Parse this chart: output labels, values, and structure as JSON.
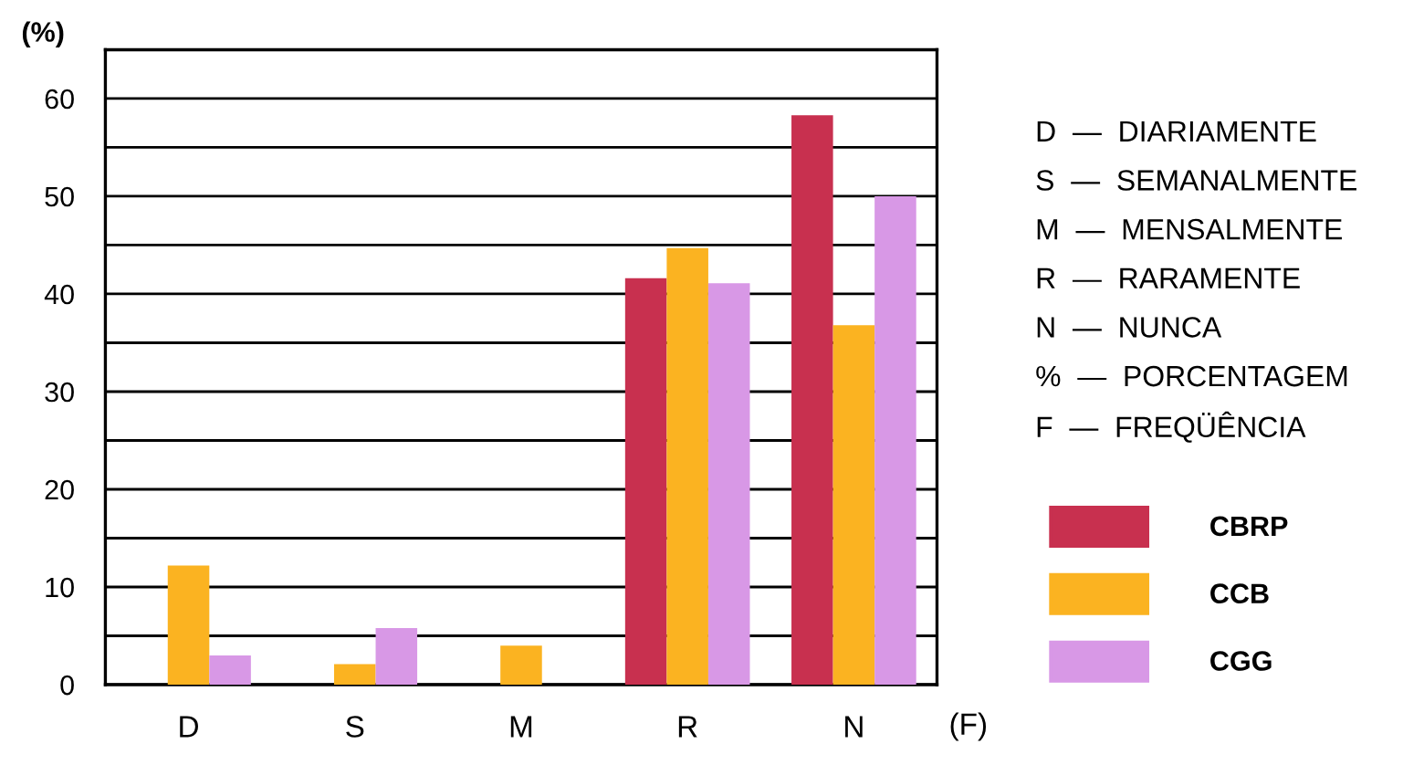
{
  "chart_data": {
    "type": "bar",
    "ylabel": "(%)",
    "xlabel": "(F)",
    "categories": [
      "D",
      "S",
      "M",
      "R",
      "N"
    ],
    "series": [
      {
        "name": "CBRP",
        "color": "#c8304f",
        "values": [
          null,
          null,
          null,
          41.6,
          58.3
        ]
      },
      {
        "name": "CCB",
        "color": "#fbb321",
        "values": [
          12.2,
          2.1,
          4.0,
          44.7,
          36.8
        ]
      },
      {
        "name": "CGG",
        "color": "#d898e6",
        "values": [
          3.0,
          5.8,
          null,
          41.1,
          50.0
        ]
      }
    ],
    "ylim": [
      0,
      65
    ],
    "yticks": [
      0,
      {
        "value": 5,
        "label": null
      },
      10,
      {
        "value": 15,
        "label": null
      },
      20,
      {
        "value": 25,
        "label": null
      },
      30,
      {
        "value": 35,
        "label": null
      },
      40,
      {
        "value": 45,
        "label": null
      },
      50,
      {
        "value": 55,
        "label": null
      },
      60
    ],
    "grid": "y",
    "legend": "right",
    "annotations": [
      "D  —  DIARIAMENTE",
      "S  —  SEMANALMENTE",
      "M  —  MENSALMENTE",
      "R  —  RARAMENTE",
      "N  —  NUNCA",
      "%  —  PORCENTAGEM",
      "F  —  FREQÜÊNCIA"
    ]
  }
}
